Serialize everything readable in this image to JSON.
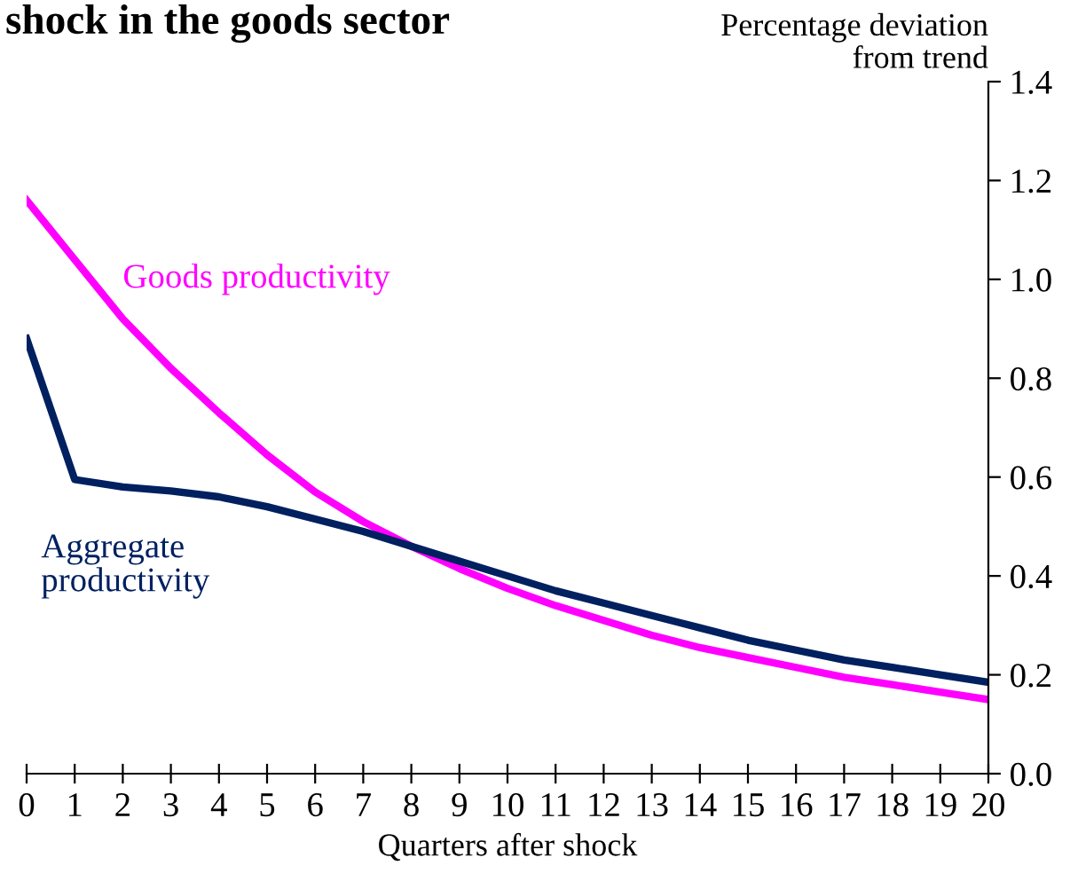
{
  "chart_data": {
    "type": "line",
    "title": "shock in the goods sector",
    "xlabel": "Quarters after shock",
    "ylabel": "Percentage deviation\nfrom trend",
    "x": [
      0,
      1,
      2,
      3,
      4,
      5,
      6,
      7,
      8,
      9,
      10,
      11,
      12,
      13,
      14,
      15,
      16,
      17,
      18,
      19,
      20
    ],
    "series": [
      {
        "name": "Goods productivity",
        "color": "#ff00ff",
        "values": [
          1.16,
          1.04,
          0.92,
          0.82,
          0.73,
          0.645,
          0.57,
          0.51,
          0.46,
          0.415,
          0.375,
          0.34,
          0.31,
          0.28,
          0.255,
          0.235,
          0.215,
          0.195,
          0.18,
          0.165,
          0.15
        ]
      },
      {
        "name": "Aggregate\nproductivity",
        "color": "#002060",
        "values": [
          0.88,
          0.595,
          0.58,
          0.572,
          0.56,
          0.54,
          0.515,
          0.49,
          0.46,
          0.43,
          0.4,
          0.37,
          0.345,
          0.32,
          0.295,
          0.27,
          0.25,
          0.23,
          0.215,
          0.2,
          0.185
        ]
      }
    ],
    "xlim": [
      0,
      20
    ],
    "xticks": [
      0,
      1,
      2,
      3,
      4,
      5,
      6,
      7,
      8,
      9,
      10,
      11,
      12,
      13,
      14,
      15,
      16,
      17,
      18,
      19,
      20
    ],
    "ylim": [
      0,
      1.4
    ],
    "yticks": [
      {
        "value": 0,
        "label": "0.0"
      },
      {
        "value": 0.2,
        "label": "0.2"
      },
      {
        "value": 0.4,
        "label": "0.4"
      },
      {
        "value": 0.6,
        "label": "0.6"
      },
      {
        "value": 0.8,
        "label": "0.8"
      },
      {
        "value": 1.0,
        "label": "1.0"
      },
      {
        "value": 1.2,
        "label": "1.2"
      },
      {
        "value": 1.4,
        "label": "1.4"
      }
    ],
    "grid": false,
    "legend": false,
    "marker": "none",
    "line_style": "solid"
  }
}
